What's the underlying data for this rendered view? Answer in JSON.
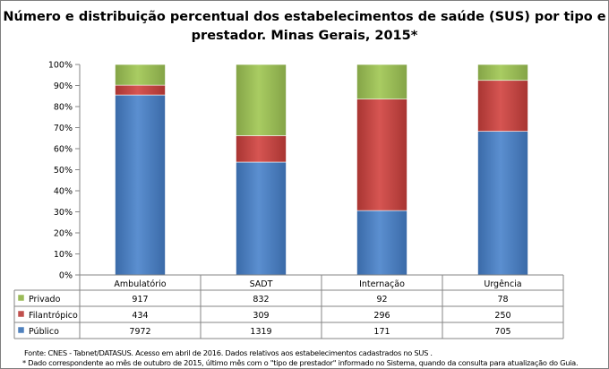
{
  "chart_data": {
    "type": "stacked-bar-100",
    "title_lines": [
      "Número e distribuição percentual dos estabelecimentos de saúde (SUS) por tipo e",
      "prestador. Minas Gerais, 2015*"
    ],
    "categories": [
      "Ambulatório",
      "SADT",
      "Internação",
      "Urgência"
    ],
    "series": [
      {
        "name": "Público",
        "color": "#4f81bd",
        "values": [
          7972,
          1319,
          171,
          705
        ]
      },
      {
        "name": "Filantrópico",
        "color": "#c0504d",
        "values": [
          434,
          309,
          296,
          250
        ]
      },
      {
        "name": "Privado",
        "color": "#9bbb59",
        "values": [
          917,
          832,
          92,
          78
        ]
      }
    ],
    "table_row_order": [
      "Privado",
      "Filantrópico",
      "Público"
    ],
    "yticks": [
      "0%",
      "10%",
      "20%",
      "30%",
      "40%",
      "50%",
      "60%",
      "70%",
      "80%",
      "90%",
      "100%"
    ],
    "ylim": [
      0,
      100
    ],
    "grid": false,
    "legend": "data-table"
  },
  "footnotes": {
    "source": "Fonte: CNES - Tabnet/DATASUS. Acesso em abril de 2016.  Dados relativos aos estabelecimentos cadastrados no SUS .",
    "note": "* Dado correspondente ao mês de  outubro de 2015, último mês com o \"tipo de prestador\" informado no Sistema, quando da consulta para atualização do Guia."
  }
}
